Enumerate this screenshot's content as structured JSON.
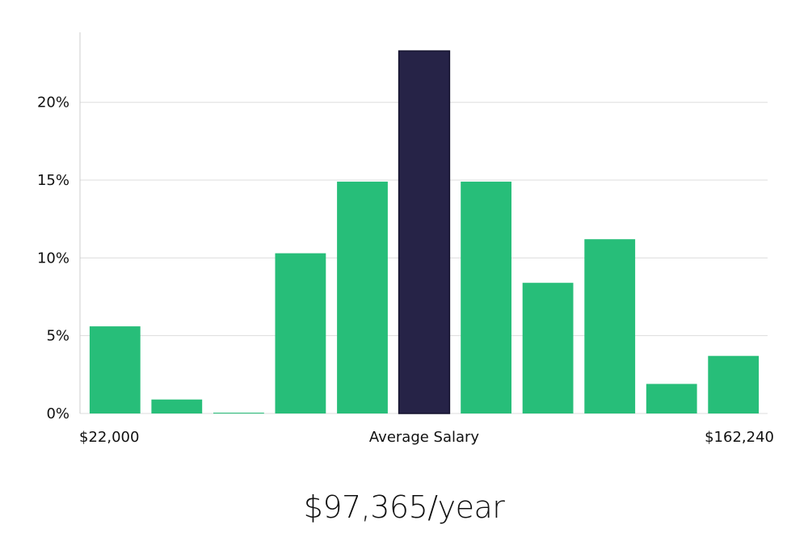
{
  "chart_data": {
    "type": "bar",
    "unit": "%",
    "values": [
      5.6,
      0.9,
      0.05,
      10.3,
      14.9,
      23.3,
      14.9,
      8.4,
      11.2,
      1.9,
      3.7
    ],
    "highlight_index": 5,
    "ylim": [
      0,
      24.5
    ],
    "yticks": [
      0,
      5,
      10,
      15,
      20
    ],
    "ytick_labels": [
      "0%",
      "5%",
      "10%",
      "15%",
      "20%"
    ],
    "x_labels": {
      "left": "$22,000",
      "center": "Average Salary",
      "right": "$162,240"
    },
    "grid": true,
    "colors": {
      "bar": "#27be79",
      "highlight": "#262347",
      "grid": "#dddddd",
      "axis": "#cccccc"
    }
  },
  "summary": {
    "average_salary": "$97,365/year"
  }
}
